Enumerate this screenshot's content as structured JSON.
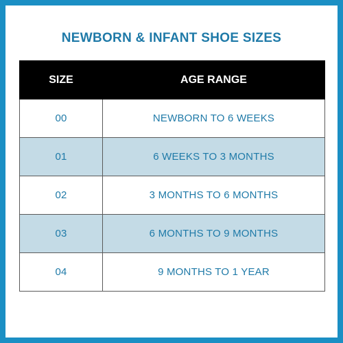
{
  "title": "NEWBORN & INFANT SHOE SIZES",
  "colors": {
    "border_frame": "#1b8fc4",
    "title_text": "#1f7aa8",
    "header_bg": "#000000",
    "header_text": "#ffffff",
    "shaded_row": "#c4dbe6",
    "cell_text": "#1f7aa8"
  },
  "table": {
    "headers": [
      "SIZE",
      "AGE RANGE"
    ],
    "rows": [
      {
        "size": "00",
        "age": "NEWBORN TO 6 WEEKS"
      },
      {
        "size": "01",
        "age": "6 WEEKS TO 3 MONTHS"
      },
      {
        "size": "02",
        "age": "3 MONTHS TO 6 MONTHS"
      },
      {
        "size": "03",
        "age": "6 MONTHS TO 9 MONTHS"
      },
      {
        "size": "04",
        "age": "9 MONTHS TO 1 YEAR"
      }
    ]
  }
}
